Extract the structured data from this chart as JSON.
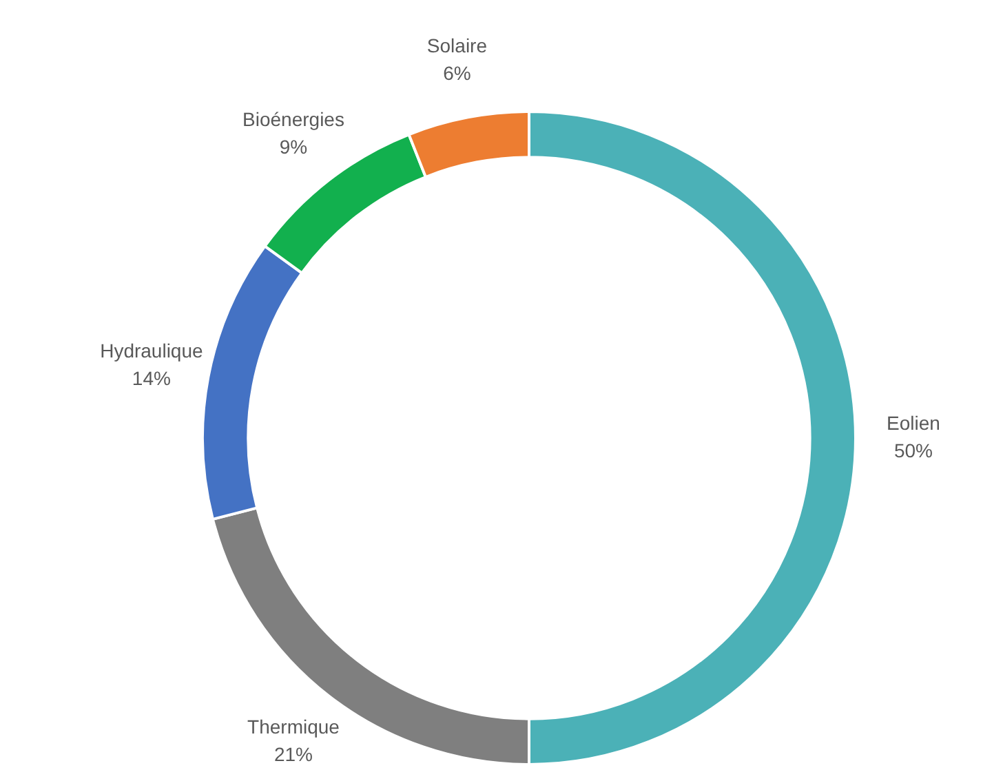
{
  "chart_data": {
    "type": "donut",
    "categories": [
      "Eolien",
      "Thermique",
      "Hydraulique",
      "Bioénergies",
      "Solaire"
    ],
    "values": [
      50,
      21,
      14,
      9,
      6
    ],
    "colors": [
      "#4bb1b7",
      "#7f7f7f",
      "#4472c4",
      "#12b04e",
      "#ed7d31"
    ],
    "value_labels": [
      "50%",
      "21%",
      "14%",
      "9%",
      "6%"
    ],
    "legend": false
  }
}
